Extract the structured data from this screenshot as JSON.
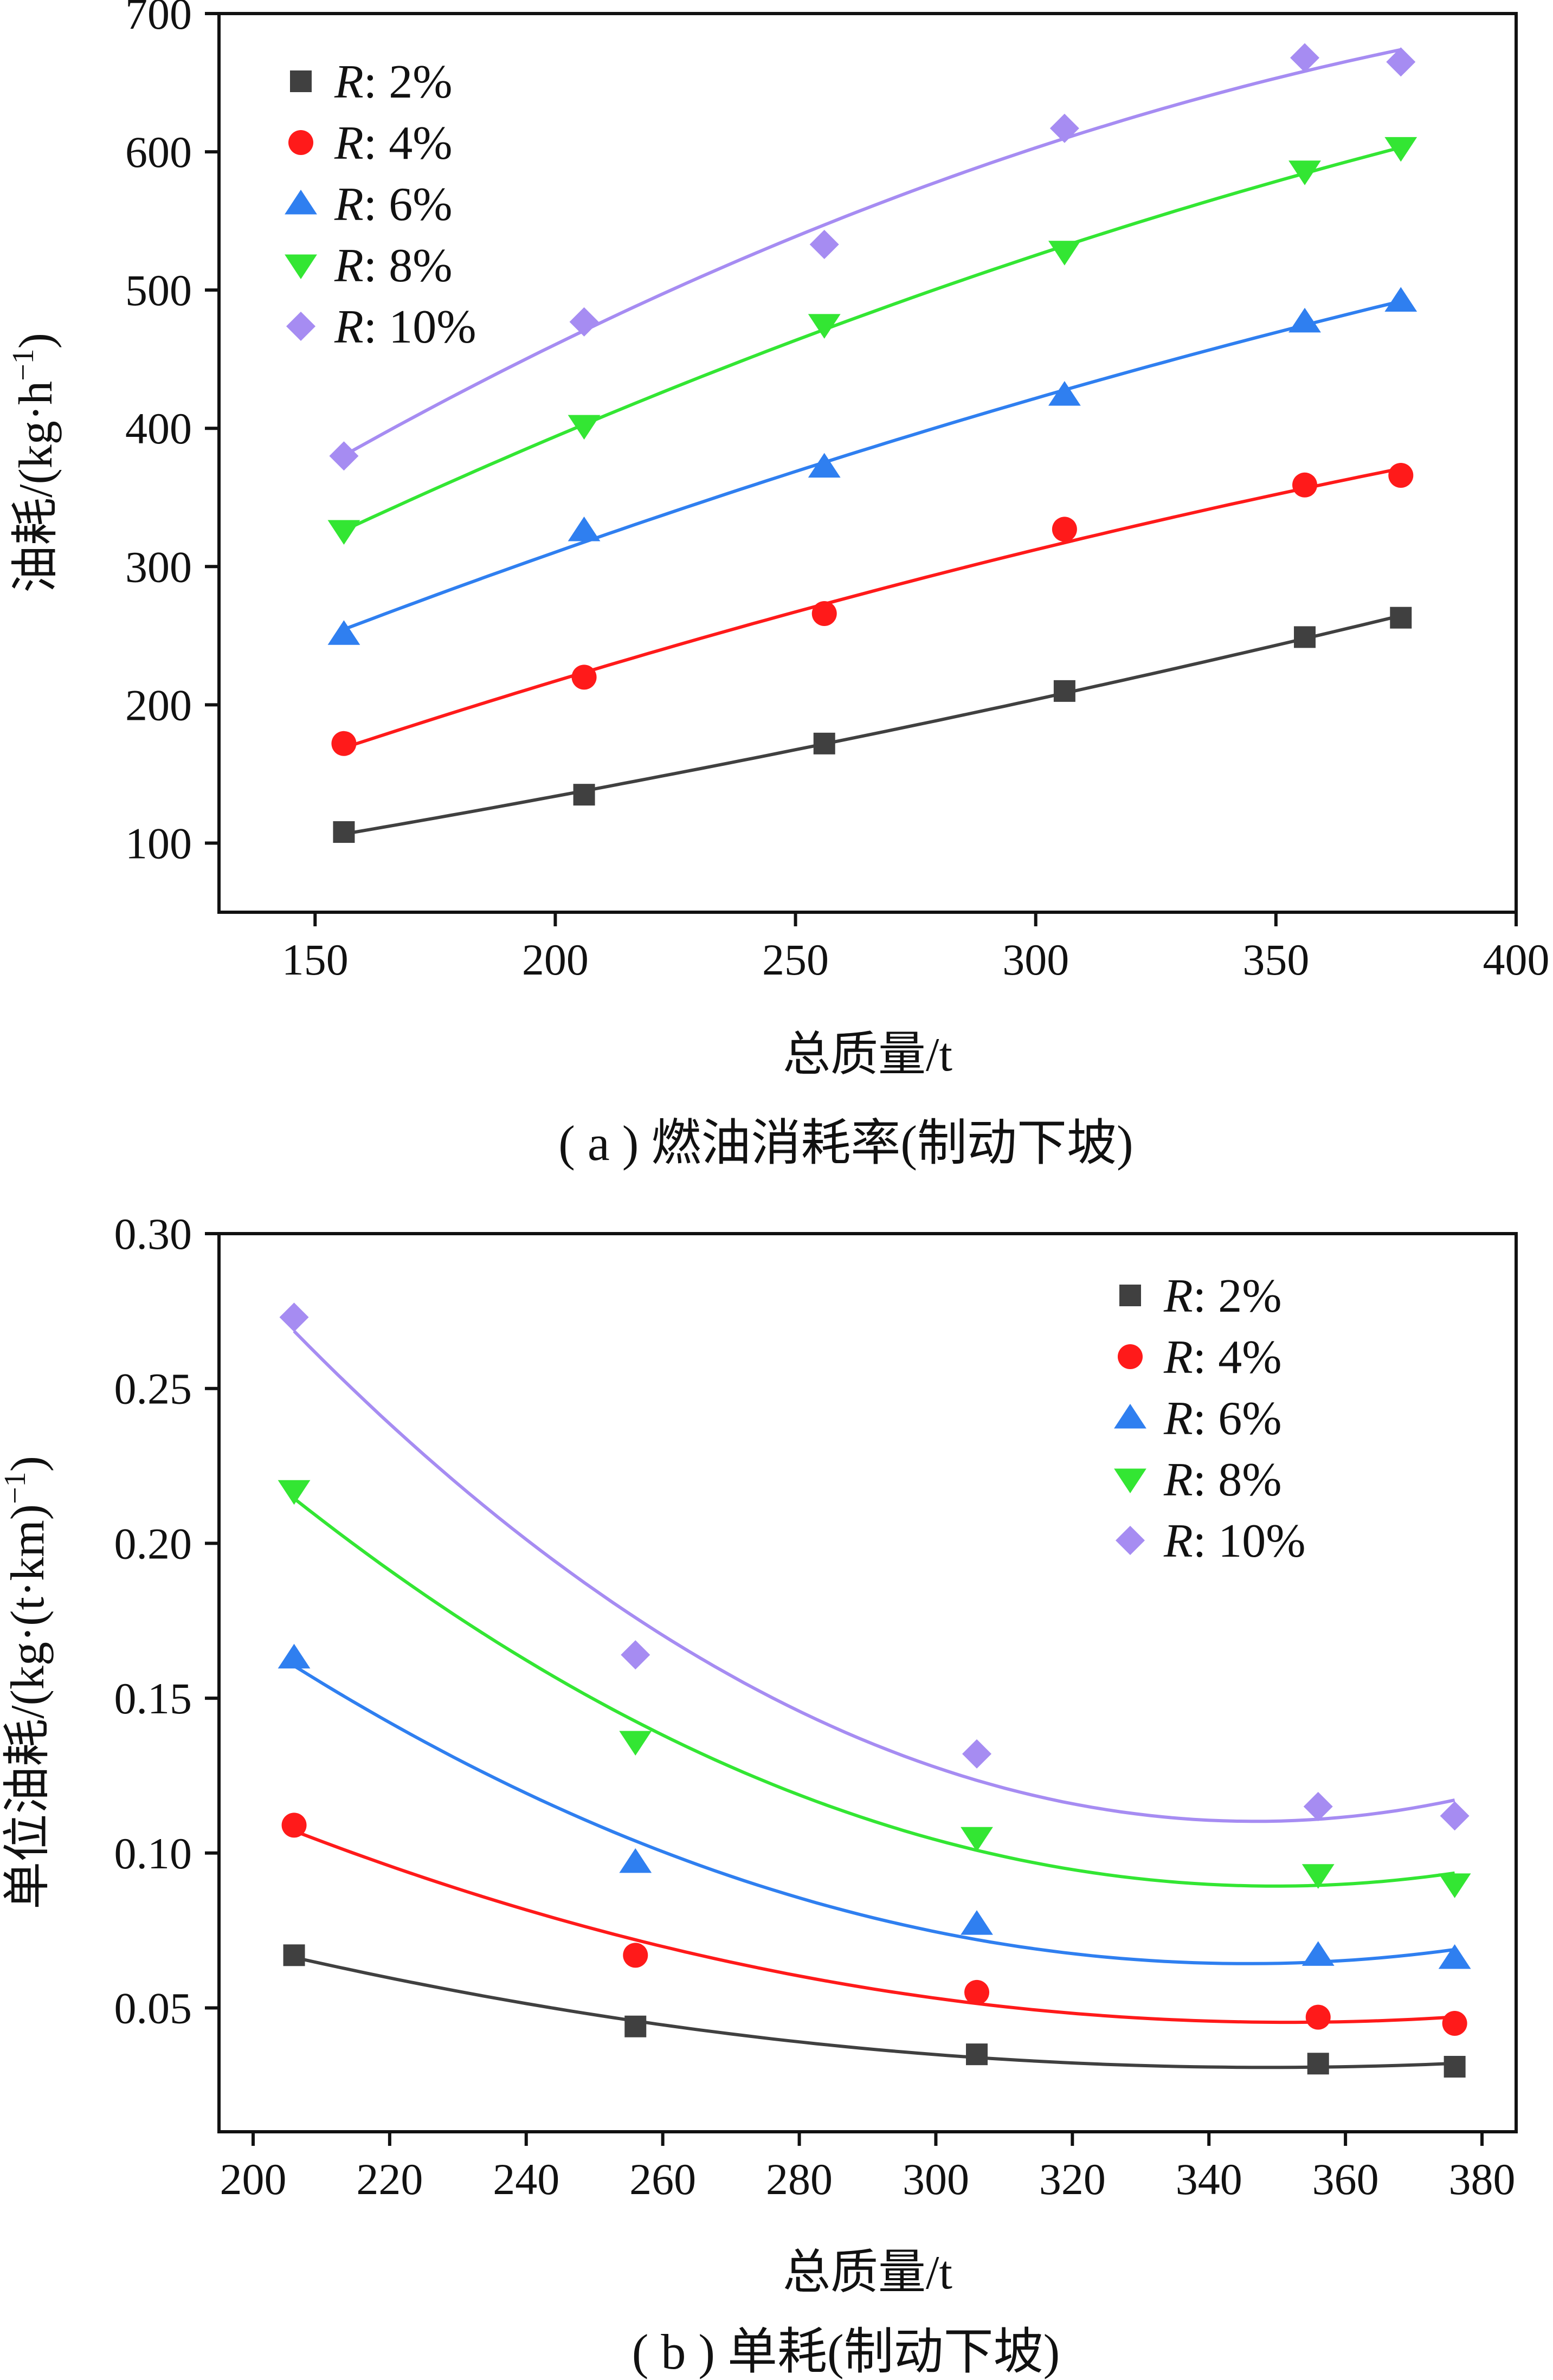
{
  "chart_data": [
    {
      "type": "scatter",
      "caption": "( a ) 燃油消耗率(制动下坡)",
      "xlabel": "总质量/t",
      "ylabel": "油耗/(kg·h",
      "ylabel_superscript": "−1",
      "ylabel_close": ")",
      "xlim": [
        130,
        400
      ],
      "ylim": [
        50,
        700
      ],
      "xticks": [
        150,
        200,
        250,
        300,
        350,
        400
      ],
      "yticks": [
        100,
        200,
        300,
        400,
        500,
        600,
        700
      ],
      "fit": "quadratic",
      "legend_position": "top-left",
      "x": [
        156,
        206,
        256,
        306,
        356,
        376
      ],
      "series": [
        {
          "name_var": "R",
          "name_value": ": 2%",
          "color": "#404040",
          "marker": "square",
          "values": [
            108,
            135,
            172,
            210,
            249,
            263
          ]
        },
        {
          "name_var": "R",
          "name_value": ": 4%",
          "color": "#ff1a1a",
          "marker": "circle",
          "values": [
            172,
            220,
            266,
            327,
            359,
            366
          ]
        },
        {
          "name_var": "R",
          "name_value": ": 6%",
          "color": "#2f7ff0",
          "marker": "triangle-up",
          "values": [
            251,
            326,
            372,
            424,
            477,
            492
          ]
        },
        {
          "name_var": "R",
          "name_value": ": 8%",
          "color": "#33e633",
          "marker": "triangle-down",
          "values": [
            326,
            402,
            475,
            528,
            586,
            603
          ]
        },
        {
          "name_var": "R",
          "name_value": ": 10%",
          "color": "#a68cf2",
          "marker": "diamond",
          "values": [
            380,
            477,
            533,
            617,
            668,
            665
          ]
        }
      ]
    },
    {
      "type": "scatter",
      "caption": "( b ) 单耗(制动下坡)",
      "xlabel": "总质量/t",
      "ylabel": "单位油耗/(kg·(t·km)",
      "ylabel_superscript": "−1",
      "ylabel_close": ")",
      "xlim": [
        195,
        385
      ],
      "ylim": [
        0.01,
        0.3
      ],
      "xticks": [
        200,
        220,
        240,
        260,
        280,
        300,
        320,
        340,
        360,
        380
      ],
      "yticks": [
        0.05,
        0.1,
        0.15,
        0.2,
        0.25,
        0.3
      ],
      "fit": "quadratic",
      "legend_position": "top-right",
      "x": [
        206,
        256,
        306,
        356,
        376
      ],
      "series": [
        {
          "name_var": "R",
          "name_value": ": 2%",
          "color": "#404040",
          "marker": "square",
          "values": [
            0.067,
            0.044,
            0.035,
            0.032,
            0.031
          ]
        },
        {
          "name_var": "R",
          "name_value": ": 4%",
          "color": "#ff1a1a",
          "marker": "circle",
          "values": [
            0.109,
            0.067,
            0.055,
            0.047,
            0.045
          ]
        },
        {
          "name_var": "R",
          "name_value": ": 6%",
          "color": "#2f7ff0",
          "marker": "triangle-up",
          "values": [
            0.163,
            0.097,
            0.077,
            0.067,
            0.066
          ]
        },
        {
          "name_var": "R",
          "name_value": ": 8%",
          "color": "#33e633",
          "marker": "triangle-down",
          "values": [
            0.217,
            0.136,
            0.105,
            0.093,
            0.09
          ]
        },
        {
          "name_var": "R",
          "name_value": ": 10%",
          "color": "#a68cf2",
          "marker": "diamond",
          "values": [
            0.273,
            0.164,
            0.132,
            0.115,
            0.112
          ]
        }
      ]
    }
  ]
}
